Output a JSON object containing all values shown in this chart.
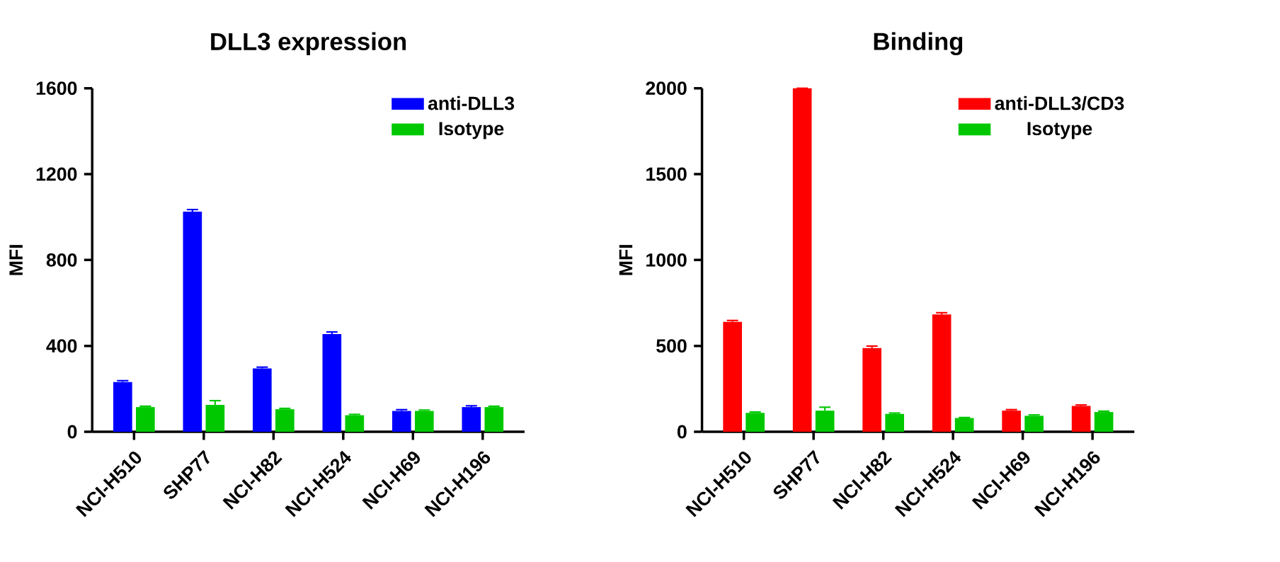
{
  "chart_data": [
    {
      "type": "bar",
      "title": "DLL3 expression",
      "ylabel": "MFI",
      "categories": [
        "NCI-H510",
        "SHP77",
        "NCI-H82",
        "NCI-H524",
        "NCI-H69",
        "NCI-H196"
      ],
      "series": [
        {
          "name": "anti-DLL3",
          "color": "#0000ff",
          "values": [
            232,
            1025,
            295,
            455,
            97,
            115
          ],
          "errors": [
            6,
            10,
            6,
            10,
            6,
            6
          ]
        },
        {
          "name": "Isotype",
          "color": "#00c800",
          "values": [
            115,
            125,
            105,
            77,
            97,
            115
          ],
          "errors": [
            4,
            20,
            4,
            4,
            4,
            4
          ]
        }
      ],
      "ylim": [
        0,
        1600
      ],
      "yticks": [
        0,
        400,
        800,
        1200,
        1600
      ],
      "legend": "top right"
    },
    {
      "type": "bar",
      "title": "Binding",
      "ylabel": "MFI",
      "categories": [
        "NCI-H510",
        "SHP77",
        "NCI-H82",
        "NCI-H524",
        "NCI-H69",
        "NCI-H196"
      ],
      "series": [
        {
          "name": "anti-DLL3/CD3",
          "color": "#ff0000",
          "values": [
            640,
            2000,
            487,
            683,
            123,
            150
          ],
          "errors": [
            8,
            0,
            12,
            10,
            6,
            6
          ]
        },
        {
          "name": "Isotype",
          "color": "#00c800",
          "values": [
            110,
            123,
            104,
            80,
            93,
            115
          ],
          "errors": [
            5,
            20,
            5,
            3,
            5,
            5
          ]
        }
      ],
      "ylim": [
        0,
        2000
      ],
      "yticks": [
        0,
        500,
        1000,
        1500,
        2000
      ],
      "legend": "top right"
    }
  ]
}
